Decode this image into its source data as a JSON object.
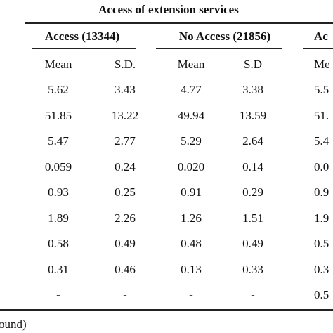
{
  "table": {
    "caption": "Access of extension services",
    "groups": [
      "Access (13344)",
      "No Access (21856)",
      "Ac"
    ],
    "subheaders": [
      "Mean",
      "S.D.",
      "Mean",
      "S.D",
      "Me"
    ],
    "rows": [
      [
        "5.62",
        "3.43",
        "4.77",
        "3.38",
        "5.5"
      ],
      [
        "51.85",
        "13.22",
        "49.94",
        "13.59",
        "51."
      ],
      [
        "5.47",
        "2.77",
        "5.29",
        "2.64",
        "5.4"
      ],
      [
        "0.059",
        "0.24",
        "0.020",
        "0.14",
        "0.0"
      ],
      [
        "0.93",
        "0.25",
        "0.91",
        "0.29",
        "0.9"
      ],
      [
        "1.89",
        "2.26",
        "1.26",
        "1.51",
        "1.9"
      ],
      [
        "0.58",
        "0.49",
        "0.48",
        "0.49",
        "0.5"
      ],
      [
        "0.31",
        "0.46",
        "0.13",
        "0.33",
        "0.3"
      ],
      [
        "-",
        "-",
        "-",
        "-",
        "0.5"
      ]
    ],
    "footnote": "ound)"
  }
}
